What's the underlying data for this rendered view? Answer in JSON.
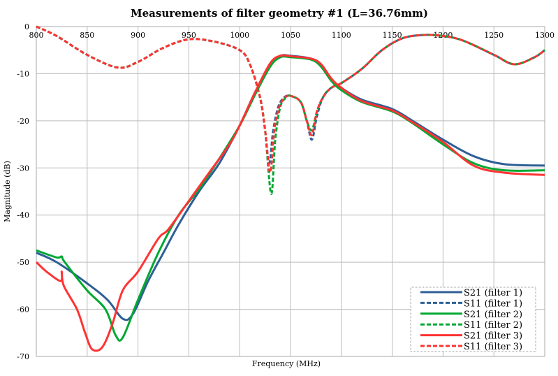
{
  "chart_data": {
    "type": "line",
    "title": "Measurements of filter geometry #1 (L=36.76mm)",
    "xlabel": "Frequency (MHz)",
    "ylabel": "Magnitude (dB)",
    "xlim": [
      800,
      1300
    ],
    "ylim": [
      -70,
      0
    ],
    "xticks": [
      800,
      850,
      900,
      950,
      1000,
      1050,
      1100,
      1150,
      1200,
      1250,
      1300
    ],
    "yticks": [
      0,
      -10,
      -20,
      -30,
      -40,
      -50,
      -60,
      -70
    ],
    "grid": true,
    "legend_position": "bottom-right",
    "series": [
      {
        "name": "S21 (filter 1)",
        "color": "#2e5f95",
        "dash": false,
        "x": [
          800,
          820,
          850,
          870,
          885,
          895,
          910,
          925,
          940,
          960,
          980,
          1000,
          1015,
          1030,
          1040,
          1050,
          1070,
          1080,
          1090,
          1100,
          1120,
          1150,
          1170,
          1200,
          1230,
          1260,
          1300
        ],
        "y": [
          -48,
          -50,
          -54.5,
          -58,
          -62,
          -61,
          -54,
          -48,
          -42,
          -35,
          -29,
          -21,
          -14,
          -8,
          -6.2,
          -6.2,
          -6.8,
          -8,
          -11,
          -13,
          -15.5,
          -17.5,
          -20,
          -24,
          -27.5,
          -29.2,
          -29.5
        ]
      },
      {
        "name": "S11 (filter 1)",
        "color": "#2e5f95",
        "dash": true,
        "x": [
          800,
          820,
          850,
          880,
          900,
          925,
          950,
          975,
          1000,
          1010,
          1020,
          1025,
          1029,
          1033,
          1038,
          1044,
          1050,
          1060,
          1066,
          1071,
          1076,
          1082,
          1090,
          1100,
          1120,
          1140,
          1160,
          1180,
          1200,
          1220,
          1250,
          1270,
          1290,
          1300
        ],
        "y": [
          0,
          -2,
          -6,
          -8.7,
          -7.5,
          -4.5,
          -2.7,
          -3.2,
          -5,
          -8,
          -15,
          -22,
          -29,
          -22,
          -17,
          -15,
          -14.7,
          -16,
          -20,
          -24,
          -19,
          -15,
          -13,
          -12,
          -9,
          -5,
          -2.5,
          -1.8,
          -2,
          -3,
          -6,
          -8,
          -6.5,
          -5
        ]
      },
      {
        "name": "S21 (filter 2)",
        "color": "#00a832",
        "dash": false,
        "x": [
          800,
          820,
          825,
          828,
          850,
          868,
          878,
          885,
          900,
          920,
          940,
          960,
          980,
          1000,
          1015,
          1030,
          1040,
          1050,
          1070,
          1080,
          1090,
          1100,
          1120,
          1150,
          1170,
          1200,
          1230,
          1260,
          1300
        ],
        "y": [
          -47.5,
          -49,
          -48.8,
          -50,
          -56,
          -60,
          -65.5,
          -66,
          -58,
          -48,
          -40,
          -34.5,
          -28,
          -21,
          -14.5,
          -8.5,
          -6.5,
          -6.5,
          -7,
          -8.5,
          -11.5,
          -13.5,
          -16,
          -18,
          -20.5,
          -25,
          -29,
          -30.5,
          -30.5
        ]
      },
      {
        "name": "S11 (filter 2)",
        "color": "#00a832",
        "dash": true,
        "x": [
          800,
          820,
          850,
          880,
          900,
          925,
          950,
          975,
          1000,
          1010,
          1020,
          1025,
          1031,
          1035,
          1040,
          1046,
          1050,
          1060,
          1066,
          1071,
          1076,
          1082,
          1090,
          1100,
          1120,
          1140,
          1160,
          1180,
          1200,
          1220,
          1250,
          1270,
          1290,
          1300
        ],
        "y": [
          0,
          -2,
          -6,
          -8.7,
          -7.5,
          -4.5,
          -2.7,
          -3.2,
          -5,
          -8,
          -15,
          -22,
          -35.5,
          -24,
          -17,
          -15,
          -14.7,
          -16,
          -20,
          -22,
          -18,
          -15,
          -13,
          -12,
          -9,
          -5,
          -2.5,
          -1.8,
          -2,
          -3,
          -6,
          -8,
          -6.5,
          -5
        ]
      },
      {
        "name": "S21 (filter 3)",
        "color": "#ff3333",
        "dash": false,
        "x": [
          800,
          810,
          824,
          825,
          827,
          840,
          848,
          855,
          865,
          875,
          885,
          900,
          920,
          930,
          950,
          970,
          990,
          1000,
          1015,
          1030,
          1040,
          1050,
          1070,
          1080,
          1090,
          1100,
          1120,
          1150,
          1170,
          1200,
          1230,
          1260,
          1300
        ],
        "y": [
          -50,
          -52,
          -54,
          -52,
          -55,
          -60,
          -65,
          -68.5,
          -68,
          -63,
          -56,
          -52,
          -45,
          -43,
          -37,
          -31,
          -25,
          -21,
          -14,
          -7.8,
          -6.2,
          -6.3,
          -6.8,
          -8,
          -11,
          -13,
          -15.8,
          -17.8,
          -20.3,
          -24.5,
          -29.5,
          -31,
          -31.5
        ]
      },
      {
        "name": "S11 (filter 3)",
        "color": "#ff3333",
        "dash": true,
        "x": [
          800,
          820,
          850,
          880,
          900,
          925,
          950,
          975,
          1000,
          1010,
          1020,
          1025,
          1030,
          1034,
          1039,
          1045,
          1050,
          1060,
          1066,
          1071,
          1076,
          1082,
          1090,
          1100,
          1120,
          1140,
          1160,
          1180,
          1200,
          1220,
          1250,
          1270,
          1290,
          1300
        ],
        "y": [
          0,
          -2,
          -6,
          -8.7,
          -7.5,
          -4.5,
          -2.7,
          -3.2,
          -5,
          -8,
          -15,
          -22,
          -31,
          -22,
          -17,
          -15,
          -14.7,
          -16,
          -20,
          -23,
          -18,
          -15,
          -13,
          -12,
          -9,
          -5,
          -2.5,
          -1.8,
          -2,
          -3,
          -6,
          -8,
          -6.5,
          -5
        ]
      }
    ]
  }
}
